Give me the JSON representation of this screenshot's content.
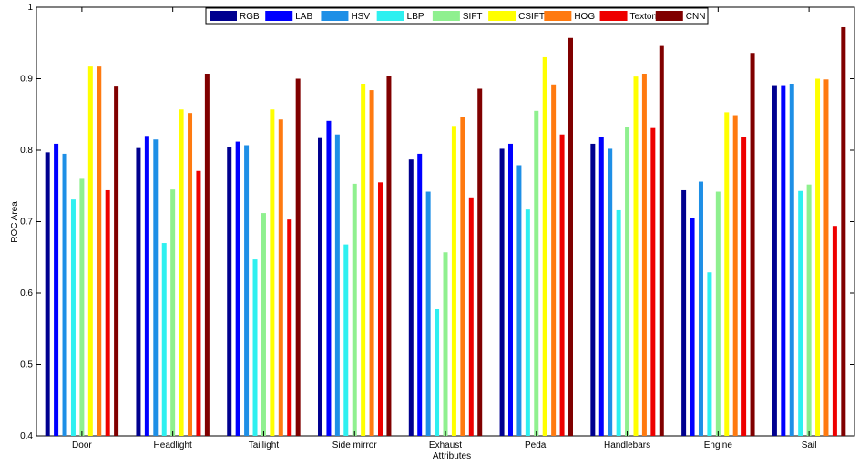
{
  "chart_data": {
    "type": "bar",
    "title": "",
    "xlabel": "Attributes",
    "ylabel": "ROC Area",
    "ylim": [
      0.4,
      1.0
    ],
    "yticks": [
      "0.4",
      "0.5",
      "0.6",
      "0.7",
      "0.8",
      "0.9",
      "1"
    ],
    "grid": false,
    "legend_position": "top-center",
    "categories": [
      "Door",
      "Headlight",
      "Taillight",
      "Side mirror",
      "Exhaust",
      "Pedal",
      "Handlebars",
      "Engine",
      "Sail"
    ],
    "series": [
      {
        "name": "RGB",
        "color": "#00008f",
        "values": [
          0.797,
          0.803,
          0.804,
          0.817,
          0.787,
          0.802,
          0.809,
          0.744,
          0.891
        ]
      },
      {
        "name": "LAB",
        "color": "#0000ff",
        "values": [
          0.809,
          0.82,
          0.812,
          0.841,
          0.795,
          0.809,
          0.818,
          0.705,
          0.891
        ]
      },
      {
        "name": "HSV",
        "color": "#1e8fe6",
        "values": [
          0.795,
          0.815,
          0.807,
          0.822,
          0.742,
          0.779,
          0.802,
          0.756,
          0.893
        ]
      },
      {
        "name": "LBP",
        "color": "#2ef0f0",
        "values": [
          0.731,
          0.67,
          0.647,
          0.668,
          0.578,
          0.717,
          0.716,
          0.629,
          0.743
        ]
      },
      {
        "name": "SIFT",
        "color": "#8ff08f",
        "values": [
          0.76,
          0.745,
          0.712,
          0.753,
          0.657,
          0.855,
          0.832,
          0.742,
          0.752
        ]
      },
      {
        "name": "CSIFT",
        "color": "#ffff00",
        "values": [
          0.917,
          0.857,
          0.857,
          0.893,
          0.834,
          0.93,
          0.903,
          0.853,
          0.9
        ]
      },
      {
        "name": "HOG",
        "color": "#ff7a10",
        "values": [
          0.917,
          0.852,
          0.843,
          0.884,
          0.847,
          0.892,
          0.907,
          0.849,
          0.899
        ]
      },
      {
        "name": "Texton",
        "color": "#ee0000",
        "values": [
          0.744,
          0.771,
          0.703,
          0.755,
          0.734,
          0.822,
          0.831,
          0.818,
          0.694
        ]
      },
      {
        "name": "CNN",
        "color": "#800000",
        "values": [
          0.889,
          0.907,
          0.9,
          0.904,
          0.886,
          0.957,
          0.947,
          0.936,
          0.972
        ]
      }
    ]
  }
}
